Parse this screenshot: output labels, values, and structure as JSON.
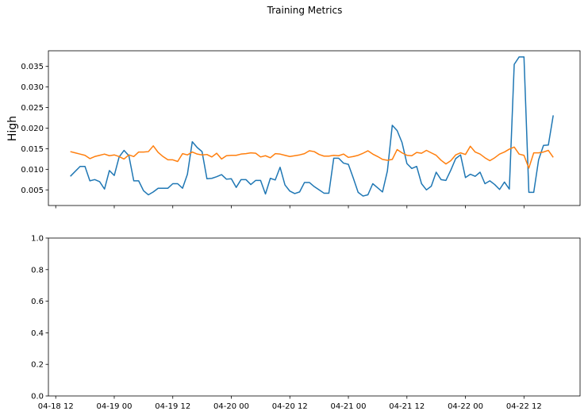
{
  "chart_data": {
    "type": "line",
    "title": "Training Metrics",
    "x_tick_labels": [
      "04-18 12",
      "04-19 00",
      "04-19 12",
      "04-20 00",
      "04-20 12",
      "04-21 00",
      "04-21 12",
      "04-22 00",
      "04-22 12"
    ],
    "x_ticks": [
      0,
      12,
      24,
      36,
      48,
      60,
      72,
      84,
      96
    ],
    "x_range": [
      -1.5,
      107.5
    ],
    "x_start_label": "04-18 12:00",
    "x_step_hours": 1,
    "panels": [
      {
        "ylabel": "High",
        "ylim": [
          0.0012,
          0.0388
        ],
        "y_ticks": [
          0.005,
          0.01,
          0.015,
          0.02,
          0.025,
          0.03,
          0.035
        ],
        "y_tick_labels": [
          "0.005",
          "0.010",
          "0.015",
          "0.020",
          "0.025",
          "0.030",
          "0.035"
        ],
        "x_start_hour": 3,
        "series": [
          {
            "color": "#1f77b4",
            "values": [
              0.0083,
              0.0095,
              0.0107,
              0.0107,
              0.0072,
              0.0075,
              0.007,
              0.0052,
              0.0097,
              0.0085,
              0.013,
              0.0146,
              0.0133,
              0.0072,
              0.0072,
              0.0048,
              0.0038,
              0.0045,
              0.0054,
              0.0054,
              0.0054,
              0.0065,
              0.0065,
              0.0054,
              0.0088,
              0.0167,
              0.0153,
              0.0143,
              0.0077,
              0.0078,
              0.0082,
              0.0087,
              0.0076,
              0.0077,
              0.0056,
              0.0075,
              0.0075,
              0.0063,
              0.0073,
              0.0073,
              0.004,
              0.0078,
              0.0074,
              0.0105,
              0.0062,
              0.0047,
              0.0041,
              0.0045,
              0.0068,
              0.0068,
              0.0058,
              0.005,
              0.0042,
              0.0042,
              0.0127,
              0.0127,
              0.0115,
              0.0112,
              0.0079,
              0.0044,
              0.0035,
              0.0038,
              0.0065,
              0.0055,
              0.0045,
              0.0096,
              0.0207,
              0.0194,
              0.0165,
              0.0114,
              0.0102,
              0.0107,
              0.0065,
              0.005,
              0.0059,
              0.0093,
              0.0075,
              0.0073,
              0.0098,
              0.0126,
              0.0135,
              0.008,
              0.0088,
              0.0083,
              0.0093,
              0.0065,
              0.0072,
              0.0063,
              0.0051,
              0.0069,
              0.0052,
              0.0355,
              0.0373,
              0.0373,
              0.0044,
              0.0044,
              0.0123,
              0.0158,
              0.0159,
              0.0231
            ]
          },
          {
            "color": "#ff7f0e",
            "values": [
              0.0143,
              0.014,
              0.0137,
              0.0134,
              0.0126,
              0.0131,
              0.0134,
              0.0137,
              0.0133,
              0.0135,
              0.0131,
              0.0125,
              0.0135,
              0.0131,
              0.0142,
              0.0142,
              0.0143,
              0.0157,
              0.0141,
              0.0131,
              0.0123,
              0.0123,
              0.0119,
              0.0138,
              0.0135,
              0.0142,
              0.0137,
              0.0135,
              0.0136,
              0.013,
              0.0139,
              0.0125,
              0.0133,
              0.0134,
              0.0134,
              0.0137,
              0.0138,
              0.014,
              0.0139,
              0.013,
              0.0133,
              0.0128,
              0.0138,
              0.0137,
              0.0134,
              0.0131,
              0.0133,
              0.0135,
              0.0138,
              0.0145,
              0.0143,
              0.0136,
              0.0132,
              0.0132,
              0.0134,
              0.0133,
              0.0137,
              0.0129,
              0.0131,
              0.0134,
              0.0139,
              0.0145,
              0.0137,
              0.0131,
              0.0124,
              0.0122,
              0.0124,
              0.0148,
              0.014,
              0.0134,
              0.0133,
              0.0141,
              0.0139,
              0.0146,
              0.014,
              0.0134,
              0.0122,
              0.0113,
              0.0121,
              0.0135,
              0.014,
              0.0136,
              0.0156,
              0.0142,
              0.0137,
              0.0128,
              0.0121,
              0.0128,
              0.0137,
              0.0142,
              0.0149,
              0.0154,
              0.0137,
              0.0134,
              0.0103,
              0.014,
              0.014,
              0.0142,
              0.0146,
              0.0129
            ]
          }
        ]
      },
      {
        "ylabel": "",
        "ylim": [
          0.0,
          1.0
        ],
        "y_ticks": [
          0.0,
          0.2,
          0.4,
          0.6,
          0.8,
          1.0
        ],
        "y_tick_labels": [
          "0.0",
          "0.2",
          "0.4",
          "0.6",
          "0.8",
          "1.0"
        ],
        "series": []
      }
    ],
    "grid": false,
    "legend": "none"
  }
}
